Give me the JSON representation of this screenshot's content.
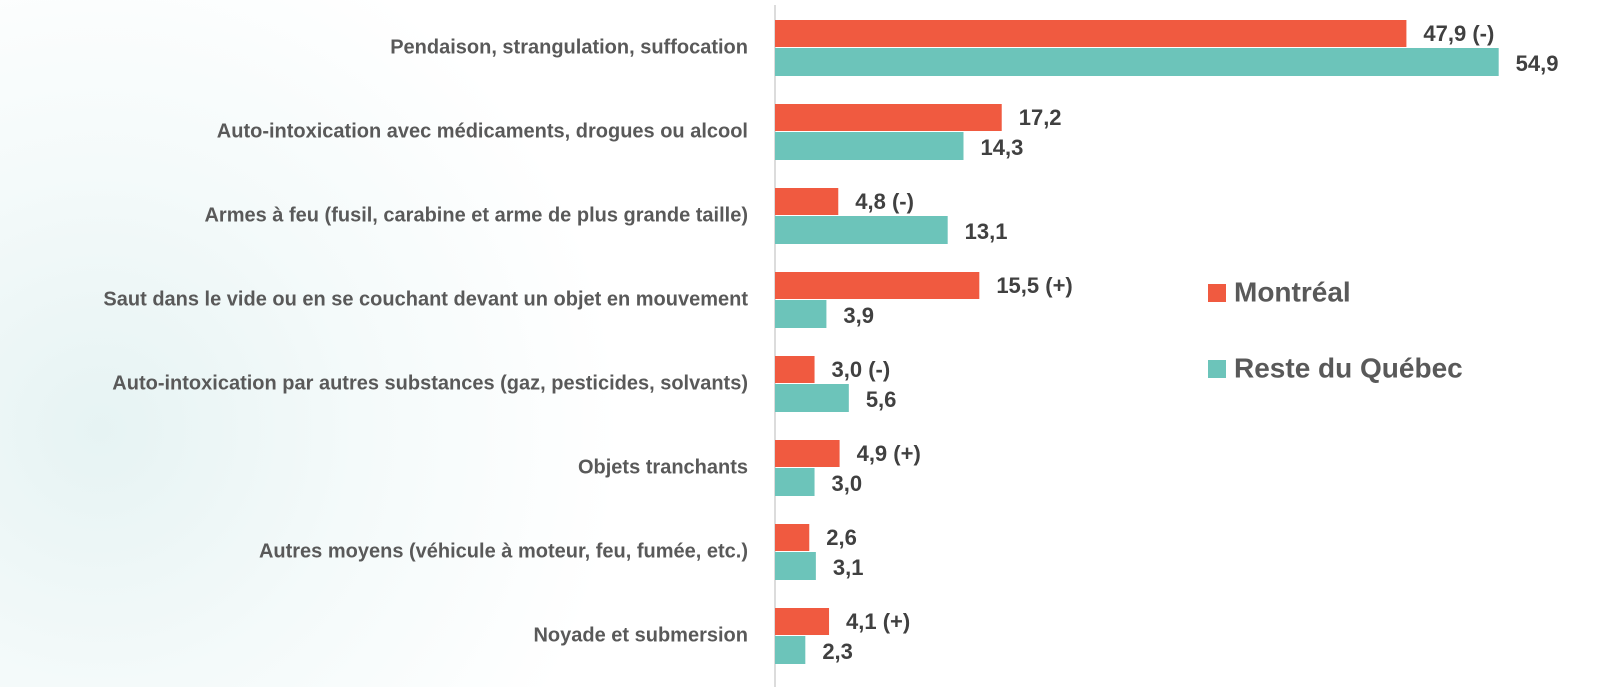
{
  "chart_data": {
    "type": "barh",
    "categories": [
      "Pendaison, strangulation, suffocation",
      "Auto-intoxication avec médicaments, drogues ou alcool",
      "Armes à feu (fusil, carabine et arme de plus grande taille)",
      "Saut dans le vide ou en se couchant devant un objet en mouvement",
      "Auto-intoxication par autres substances (gaz, pesticides, solvants)",
      "Objets tranchants",
      "Autres moyens (véhicule à moteur, feu, fumée, etc.)",
      "Noyade et submersion"
    ],
    "series": [
      {
        "name": "Montréal",
        "color": "#f05a40",
        "values": [
          47.9,
          17.2,
          4.8,
          15.5,
          3.0,
          4.9,
          2.6,
          4.1
        ],
        "value_labels": [
          "47,9 (-)",
          "17,2",
          "4,8 (-)",
          "15,5 (+)",
          "3,0 (-)",
          "4,9 (+)",
          "2,6",
          "4,1 (+)"
        ]
      },
      {
        "name": "Reste du Québec",
        "color": "#6cc4ba",
        "values": [
          54.9,
          14.3,
          13.1,
          3.9,
          5.6,
          3.0,
          3.1,
          2.3
        ],
        "value_labels": [
          "54,9",
          "14,3",
          "13,1",
          "3,9",
          "5,6",
          "3,0",
          "3,1",
          "2,3"
        ]
      }
    ],
    "xlim": [
      0,
      55
    ]
  }
}
